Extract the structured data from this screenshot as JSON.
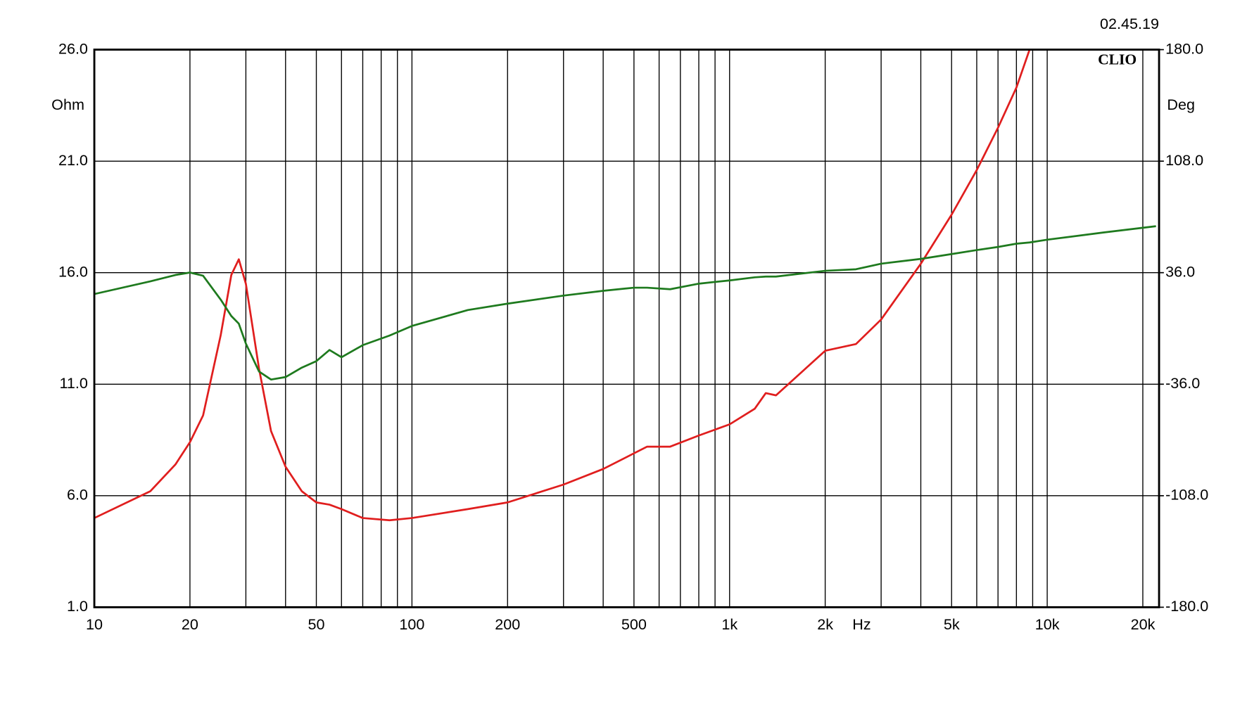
{
  "chart_data": {
    "type": "line",
    "timestamp": "02.45.19",
    "brand": "CLIO",
    "ylabel": "Ohm",
    "y2label": "Deg",
    "xunit": "Hz",
    "xscale": "log",
    "grid": true,
    "xlim": [
      10,
      22500
    ],
    "xticks": [
      10,
      20,
      50,
      100,
      200,
      500,
      {
        "value": 1000,
        "label": "1k"
      },
      {
        "value": 2000,
        "label": "2k"
      },
      {
        "value": 5000,
        "label": "5k"
      },
      {
        "value": 10000,
        "label": "10k"
      },
      {
        "value": 20000,
        "label": "20k"
      }
    ],
    "xminor": [
      30,
      40,
      60,
      70,
      80,
      90,
      300,
      400,
      600,
      700,
      800,
      900,
      3000,
      4000,
      6000,
      7000,
      8000,
      9000
    ],
    "ylim": [
      1,
      26
    ],
    "yticks": [
      {
        "value": 1,
        "label": "1.0"
      },
      {
        "value": 6,
        "label": "6.0"
      },
      {
        "value": 11,
        "label": "11.0"
      },
      {
        "value": 16,
        "label": "16.0"
      },
      {
        "value": 21,
        "label": "21.0"
      },
      {
        "value": 26,
        "label": "26.0"
      }
    ],
    "y2lim": [
      -180,
      180
    ],
    "y2ticks": [
      {
        "value": -180,
        "label": "-180.0"
      },
      {
        "value": -108,
        "label": "-108.0"
      },
      {
        "value": -36,
        "label": "-36.0"
      },
      {
        "value": 36,
        "label": "36.0"
      },
      {
        "value": 108,
        "label": "108.0"
      },
      {
        "value": 180,
        "label": "180.0"
      }
    ],
    "x": [
      10,
      15,
      18,
      20,
      22,
      25,
      27,
      28.5,
      30,
      33,
      36,
      40,
      45,
      50,
      55,
      60,
      70,
      85,
      100,
      150,
      200,
      300,
      400,
      500,
      550,
      650,
      800,
      1000,
      1200,
      1300,
      1400,
      2000,
      2500,
      3000,
      4000,
      5000,
      6000,
      7000,
      8000,
      8800,
      10000,
      15000,
      22000
    ],
    "series": [
      {
        "color": "#e01e1e",
        "axis": "y",
        "values": [
          5.0,
          6.2,
          7.4,
          8.4,
          9.6,
          13.2,
          15.9,
          16.6,
          15.5,
          11.7,
          8.9,
          7.3,
          6.2,
          5.7,
          5.6,
          5.4,
          5.0,
          4.9,
          5.0,
          5.4,
          5.7,
          6.5,
          7.2,
          7.9,
          8.2,
          8.2,
          8.7,
          9.2,
          9.9,
          10.6,
          10.5,
          12.5,
          12.8,
          13.9,
          16.4,
          18.6,
          20.6,
          22.5,
          24.3,
          26.0,
          null,
          null,
          null
        ]
      },
      {
        "color": "#1e7a1e",
        "axis": "y2",
        "values": [
          22.2,
          30.4,
          34.5,
          36.1,
          34,
          18.6,
          8,
          3.1,
          -9.8,
          -27.8,
          -33,
          -31.4,
          -25.3,
          -21.1,
          -13.9,
          -18.6,
          -10.8,
          -4.6,
          1.6,
          11.9,
          16,
          21.2,
          24.3,
          26.3,
          26.3,
          25.3,
          28.9,
          31,
          33,
          33.5,
          33.5,
          37.2,
          38.2,
          41.8,
          44.9,
          48,
          50.6,
          52.6,
          54.7,
          55.5,
          57.3,
          61.9,
          66
        ]
      }
    ]
  }
}
